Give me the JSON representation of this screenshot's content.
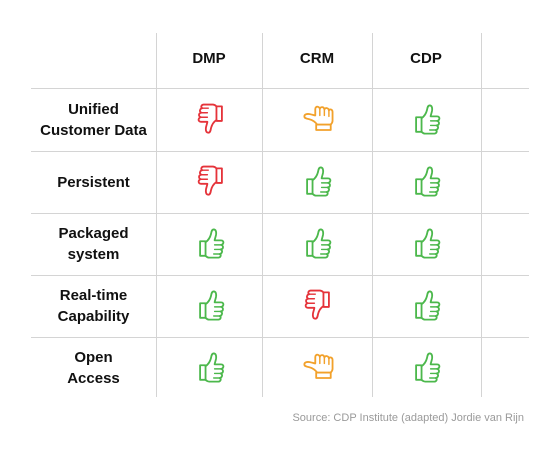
{
  "columns": [
    "DMP",
    "CRM",
    "CDP"
  ],
  "rows": [
    {
      "label_lines": [
        "Unified",
        "Customer Data"
      ],
      "ratings": [
        "down",
        "sideways",
        "up"
      ]
    },
    {
      "label_lines": [
        "Persistent"
      ],
      "ratings": [
        "down",
        "up",
        "up"
      ]
    },
    {
      "label_lines": [
        "Packaged",
        "system"
      ],
      "ratings": [
        "up",
        "up",
        "up"
      ]
    },
    {
      "label_lines": [
        "Real-time",
        "Capability"
      ],
      "ratings": [
        "up",
        "down",
        "up"
      ]
    },
    {
      "label_lines": [
        "Open",
        "Access"
      ],
      "ratings": [
        "up",
        "sideways",
        "up"
      ]
    }
  ],
  "rating_icons": {
    "up": {
      "icon": "thumbs-up-icon",
      "color": "#4cb84c"
    },
    "down": {
      "icon": "thumbs-down-icon",
      "color": "#e5333a"
    },
    "sideways": {
      "icon": "thumbs-sideways-icon",
      "color": "#f2a12b"
    }
  },
  "source": "Source: CDP Institute (adapted) Jordie van Rijn"
}
